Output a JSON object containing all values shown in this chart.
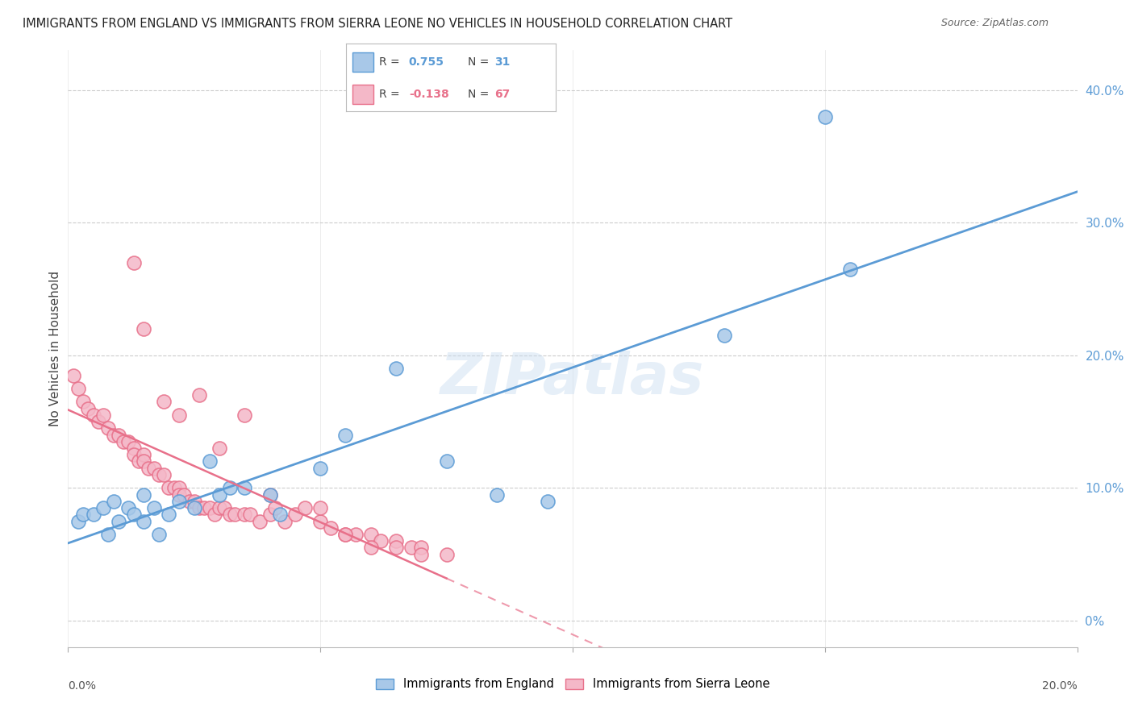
{
  "title": "IMMIGRANTS FROM ENGLAND VS IMMIGRANTS FROM SIERRA LEONE NO VEHICLES IN HOUSEHOLD CORRELATION CHART",
  "source": "Source: ZipAtlas.com",
  "ylabel": "No Vehicles in Household",
  "england_color": "#A8C8E8",
  "england_color_line": "#5B9BD5",
  "sierra_leone_color": "#F4B8C8",
  "sierra_leone_color_line": "#E8708A",
  "background_color": "#FFFFFF",
  "grid_color": "#CCCCCC",
  "watermark": "ZIPatlas",
  "xmin": 0.0,
  "xmax": 0.2,
  "ymin": -0.02,
  "ymax": 0.43,
  "ytick_vals": [
    0.0,
    0.1,
    0.2,
    0.3,
    0.4
  ],
  "ytick_labels": [
    "0%",
    "10.0%",
    "20.0%",
    "30.0%",
    "40.0%"
  ],
  "england_R": 0.755,
  "england_N": 31,
  "sierra_leone_R": -0.138,
  "sierra_leone_N": 67,
  "england_scatter_x": [
    0.002,
    0.003,
    0.005,
    0.007,
    0.008,
    0.009,
    0.01,
    0.012,
    0.013,
    0.015,
    0.015,
    0.017,
    0.018,
    0.02,
    0.022,
    0.025,
    0.028,
    0.03,
    0.032,
    0.035,
    0.04,
    0.042,
    0.05,
    0.055,
    0.065,
    0.075,
    0.085,
    0.095,
    0.13,
    0.155,
    0.15
  ],
  "england_scatter_y": [
    0.075,
    0.08,
    0.08,
    0.085,
    0.065,
    0.09,
    0.075,
    0.085,
    0.08,
    0.095,
    0.075,
    0.085,
    0.065,
    0.08,
    0.09,
    0.085,
    0.12,
    0.095,
    0.1,
    0.1,
    0.095,
    0.08,
    0.115,
    0.14,
    0.19,
    0.12,
    0.095,
    0.09,
    0.215,
    0.265,
    0.38
  ],
  "sierra_leone_scatter_x": [
    0.001,
    0.002,
    0.003,
    0.004,
    0.005,
    0.006,
    0.007,
    0.008,
    0.009,
    0.01,
    0.011,
    0.012,
    0.013,
    0.013,
    0.014,
    0.015,
    0.015,
    0.016,
    0.017,
    0.018,
    0.019,
    0.02,
    0.021,
    0.022,
    0.022,
    0.023,
    0.024,
    0.025,
    0.026,
    0.027,
    0.028,
    0.029,
    0.03,
    0.031,
    0.032,
    0.033,
    0.035,
    0.036,
    0.038,
    0.04,
    0.041,
    0.043,
    0.045,
    0.047,
    0.05,
    0.052,
    0.055,
    0.057,
    0.06,
    0.062,
    0.065,
    0.068,
    0.07,
    0.013,
    0.015,
    0.019,
    0.022,
    0.026,
    0.03,
    0.035,
    0.04,
    0.05,
    0.055,
    0.06,
    0.065,
    0.07,
    0.075
  ],
  "sierra_leone_scatter_y": [
    0.185,
    0.175,
    0.165,
    0.16,
    0.155,
    0.15,
    0.155,
    0.145,
    0.14,
    0.14,
    0.135,
    0.135,
    0.13,
    0.125,
    0.12,
    0.125,
    0.12,
    0.115,
    0.115,
    0.11,
    0.11,
    0.1,
    0.1,
    0.1,
    0.095,
    0.095,
    0.09,
    0.09,
    0.085,
    0.085,
    0.085,
    0.08,
    0.085,
    0.085,
    0.08,
    0.08,
    0.08,
    0.08,
    0.075,
    0.08,
    0.085,
    0.075,
    0.08,
    0.085,
    0.075,
    0.07,
    0.065,
    0.065,
    0.065,
    0.06,
    0.06,
    0.055,
    0.055,
    0.27,
    0.22,
    0.165,
    0.155,
    0.17,
    0.13,
    0.155,
    0.095,
    0.085,
    0.065,
    0.055,
    0.055,
    0.05,
    0.05
  ]
}
